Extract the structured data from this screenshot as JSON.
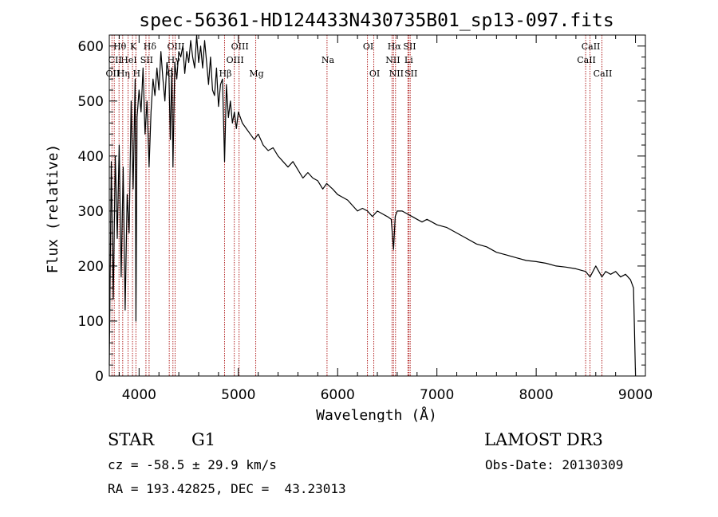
{
  "chart_data": {
    "type": "line",
    "title": "spec-56361-HD124433N430735B01_sp13-097.fits",
    "xlabel": "Wavelength (Å)",
    "ylabel": "Flux (relative)",
    "xlim": [
      3700,
      9100
    ],
    "ylim": [
      0,
      620
    ],
    "xticks": [
      4000,
      5000,
      6000,
      7000,
      8000,
      9000
    ],
    "yticks": [
      0,
      100,
      200,
      300,
      400,
      500,
      600
    ],
    "series": [
      {
        "name": "flux",
        "x": [
          3700,
          3720,
          3740,
          3760,
          3780,
          3800,
          3820,
          3840,
          3860,
          3880,
          3900,
          3920,
          3940,
          3960,
          3968,
          3980,
          4000,
          4020,
          4040,
          4060,
          4080,
          4101,
          4120,
          4140,
          4160,
          4180,
          4200,
          4220,
          4240,
          4260,
          4280,
          4300,
          4315,
          4330,
          4341,
          4360,
          4380,
          4400,
          4420,
          4440,
          4460,
          4480,
          4500,
          4520,
          4540,
          4560,
          4580,
          4600,
          4620,
          4640,
          4660,
          4680,
          4700,
          4720,
          4740,
          4760,
          4780,
          4800,
          4820,
          4840,
          4861,
          4880,
          4900,
          4920,
          4940,
          4960,
          4980,
          5000,
          5040,
          5080,
          5120,
          5160,
          5200,
          5250,
          5300,
          5350,
          5400,
          5450,
          5500,
          5550,
          5600,
          5650,
          5700,
          5750,
          5800,
          5850,
          5890,
          5950,
          6000,
          6050,
          6100,
          6150,
          6200,
          6250,
          6300,
          6350,
          6400,
          6450,
          6500,
          6540,
          6563,
          6580,
          6600,
          6650,
          6700,
          6750,
          6800,
          6850,
          6900,
          6950,
          7000,
          7100,
          7200,
          7300,
          7400,
          7500,
          7600,
          7700,
          7800,
          7900,
          8000,
          8100,
          8200,
          8300,
          8400,
          8498,
          8542,
          8600,
          8662,
          8700,
          8750,
          8800,
          8850,
          8900,
          8950,
          8980,
          9000
        ],
        "values": [
          20,
          390,
          140,
          400,
          250,
          420,
          180,
          380,
          120,
          330,
          260,
          500,
          340,
          540,
          100,
          470,
          520,
          480,
          560,
          440,
          500,
          380,
          480,
          540,
          510,
          560,
          520,
          590,
          540,
          500,
          570,
          550,
          430,
          560,
          380,
          570,
          540,
          590,
          580,
          600,
          550,
          590,
          570,
          610,
          580,
          560,
          620,
          570,
          600,
          560,
          610,
          570,
          530,
          580,
          520,
          510,
          560,
          490,
          530,
          540,
          390,
          530,
          470,
          500,
          460,
          480,
          450,
          480,
          460,
          450,
          440,
          430,
          440,
          420,
          410,
          415,
          400,
          390,
          380,
          390,
          375,
          360,
          370,
          360,
          355,
          340,
          350,
          340,
          330,
          325,
          320,
          310,
          300,
          305,
          300,
          290,
          300,
          295,
          290,
          285,
          230,
          290,
          300,
          300,
          295,
          290,
          285,
          280,
          285,
          280,
          275,
          270,
          260,
          250,
          240,
          235,
          225,
          220,
          215,
          210,
          208,
          205,
          200,
          198,
          195,
          190,
          180,
          200,
          180,
          190,
          185,
          190,
          180,
          185,
          175,
          160,
          0
        ]
      }
    ],
    "lines": [
      {
        "label": "Hθ",
        "x": 3798,
        "row": 1
      },
      {
        "label": "CII",
        "x": 3750,
        "row": 2
      },
      {
        "label": "OII",
        "x": 3727,
        "row": 3
      },
      {
        "label": "K",
        "x": 3934,
        "row": 1
      },
      {
        "label": "HeI",
        "x": 3889,
        "row": 2
      },
      {
        "label": "Hη",
        "x": 3835,
        "row": 3
      },
      {
        "label": "Hδ",
        "x": 4101,
        "row": 1
      },
      {
        "label": "SII",
        "x": 4069,
        "row": 2
      },
      {
        "label": "H",
        "x": 3968,
        "row": 3
      },
      {
        "label": "OIII",
        "x": 4363,
        "row": 1
      },
      {
        "label": "Hγ",
        "x": 4341,
        "row": 2
      },
      {
        "label": "G",
        "x": 4304,
        "row": 3
      },
      {
        "label": "OIII",
        "x": 5007,
        "row": 1
      },
      {
        "label": "OIII",
        "x": 4959,
        "row": 2
      },
      {
        "label": "Hβ",
        "x": 4861,
        "row": 3
      },
      {
        "label": "Mg",
        "x": 5175,
        "row": 3
      },
      {
        "label": "Na",
        "x": 5893,
        "row": 2
      },
      {
        "label": "OI",
        "x": 6300,
        "row": 1
      },
      {
        "label": "OI",
        "x": 6364,
        "row": 3
      },
      {
        "label": "Hα",
        "x": 6563,
        "row": 1
      },
      {
        "label": "NII",
        "x": 6548,
        "row": 2
      },
      {
        "label": "NII",
        "x": 6583,
        "row": 3
      },
      {
        "label": "SII",
        "x": 6717,
        "row": 1
      },
      {
        "label": "Li",
        "x": 6708,
        "row": 2
      },
      {
        "label": "SII",
        "x": 6731,
        "row": 3
      },
      {
        "label": "CaII",
        "x": 8542,
        "row": 1
      },
      {
        "label": "CaII",
        "x": 8498,
        "row": 2
      },
      {
        "label": "CaII",
        "x": 8662,
        "row": 3
      }
    ]
  },
  "info": {
    "class_label": "STAR",
    "subclass": "G1",
    "survey": "LAMOST DR3",
    "redshift": "cz = -58.5 ± 29.9 km/s",
    "obs_date": "Obs-Date: 20130309",
    "coords": "RA = 193.42825, DEC =  43.23013"
  },
  "colors": {
    "line_marker": "#b22222",
    "spectrum": "#000000",
    "background": "#ffffff"
  }
}
